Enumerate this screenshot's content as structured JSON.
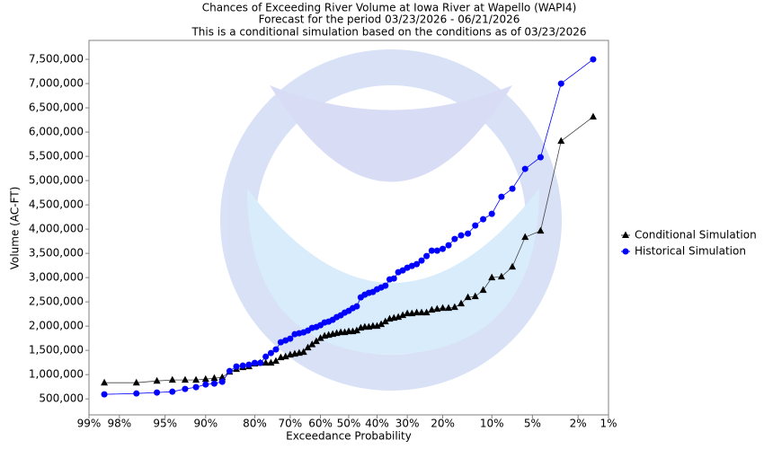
{
  "chart_data": {
    "type": "line",
    "title": "Chances of Exceeding River Volume at Iowa River at Wapello (WAPI4)",
    "subtitle": [
      "Forecast for the period 03/23/2026 - 06/21/2026",
      "This is a conditional simulation based on the conditions as of 03/23/2026"
    ],
    "x_label": "Exceedance Probability",
    "y_label": "Volume (AC-FT)",
    "xscale": "probability",
    "xlim": [
      99,
      1
    ],
    "xticks": [
      {
        "value": 99,
        "label": "99%"
      },
      {
        "value": 98,
        "label": "98%"
      },
      {
        "value": 95,
        "label": "95%"
      },
      {
        "value": 90,
        "label": "90%"
      },
      {
        "value": 80,
        "label": "80%"
      },
      {
        "value": 70,
        "label": "70%"
      },
      {
        "value": 60,
        "label": "60%"
      },
      {
        "value": 50,
        "label": "50%"
      },
      {
        "value": 40,
        "label": "40%"
      },
      {
        "value": 30,
        "label": "30%"
      },
      {
        "value": 20,
        "label": "20%"
      },
      {
        "value": 10,
        "label": "10%"
      },
      {
        "value": 5,
        "label": "5%"
      },
      {
        "value": 2,
        "label": "2%"
      },
      {
        "value": 1,
        "label": "1%"
      }
    ],
    "ylim": [
      170000,
      7890000
    ],
    "yticks": [
      {
        "value": 500000,
        "label": "500,000"
      },
      {
        "value": 1000000,
        "label": "1,000,000"
      },
      {
        "value": 1500000,
        "label": "1,500,000"
      },
      {
        "value": 2000000,
        "label": "2,000,000"
      },
      {
        "value": 2500000,
        "label": "2,500,000"
      },
      {
        "value": 3000000,
        "label": "3,000,000"
      },
      {
        "value": 3500000,
        "label": "3,500,000"
      },
      {
        "value": 4000000,
        "label": "4,000,000"
      },
      {
        "value": 4500000,
        "label": "4,500,000"
      },
      {
        "value": 5000000,
        "label": "5,000,000"
      },
      {
        "value": 5500000,
        "label": "5,500,000"
      },
      {
        "value": 6000000,
        "label": "6,000,000"
      },
      {
        "value": 6500000,
        "label": "6,500,000"
      },
      {
        "value": 7000000,
        "label": "7,000,000"
      },
      {
        "value": 7500000,
        "label": "7,500,000"
      }
    ],
    "grid": false,
    "legend": "right",
    "x": [
      98.57,
      97.14,
      95.71,
      94.29,
      92.86,
      91.43,
      90.0,
      88.57,
      87.14,
      85.71,
      84.29,
      82.86,
      81.43,
      80.0,
      78.57,
      77.14,
      75.71,
      74.29,
      72.86,
      71.43,
      70.0,
      68.57,
      67.14,
      65.71,
      64.29,
      62.86,
      61.43,
      60.0,
      58.57,
      57.14,
      55.71,
      54.29,
      52.86,
      51.43,
      50.0,
      48.57,
      47.14,
      45.71,
      44.29,
      42.86,
      41.43,
      40.0,
      38.57,
      37.14,
      35.71,
      34.29,
      32.86,
      31.43,
      30.0,
      28.57,
      27.14,
      25.71,
      24.29,
      22.86,
      21.43,
      20.0,
      18.57,
      17.14,
      15.71,
      14.29,
      12.86,
      11.43,
      10.0,
      8.57,
      7.14,
      5.71,
      4.29,
      2.86,
      1.43
    ],
    "series": [
      {
        "name": "Conditional Simulation",
        "color": "#000000",
        "line_color": "#444444",
        "marker": "triangle",
        "values": [
          833000,
          833000,
          870000,
          889000,
          889000,
          889000,
          907000,
          926000,
          944000,
          1056000,
          1111000,
          1148000,
          1167000,
          1222000,
          1241000,
          1241000,
          1241000,
          1278000,
          1352000,
          1370000,
          1407000,
          1426000,
          1444000,
          1463000,
          1556000,
          1620000,
          1685000,
          1750000,
          1796000,
          1815000,
          1833000,
          1852000,
          1870000,
          1870000,
          1889000,
          1889000,
          1907000,
          1963000,
          1981000,
          1981000,
          2000000,
          2000000,
          2037000,
          2093000,
          2148000,
          2167000,
          2185000,
          2222000,
          2259000,
          2259000,
          2278000,
          2278000,
          2278000,
          2333000,
          2352000,
          2370000,
          2370000,
          2389000,
          2463000,
          2593000,
          2611000,
          2741000,
          3000000,
          3019000,
          3222000,
          3833000,
          3963000,
          5815000,
          6315000
        ]
      },
      {
        "name": "Historical Simulation",
        "color": "#0000ff",
        "line_color": "#0000ff",
        "marker": "circle",
        "values": [
          593000,
          611000,
          630000,
          648000,
          704000,
          741000,
          796000,
          815000,
          852000,
          1074000,
          1167000,
          1185000,
          1204000,
          1241000,
          1241000,
          1370000,
          1444000,
          1519000,
          1667000,
          1704000,
          1741000,
          1833000,
          1852000,
          1870000,
          1907000,
          1963000,
          1981000,
          2019000,
          2074000,
          2093000,
          2130000,
          2185000,
          2222000,
          2278000,
          2315000,
          2370000,
          2407000,
          2593000,
          2648000,
          2685000,
          2704000,
          2759000,
          2796000,
          2833000,
          2963000,
          2981000,
          3111000,
          3148000,
          3204000,
          3241000,
          3278000,
          3352000,
          3444000,
          3556000,
          3556000,
          3593000,
          3667000,
          3796000,
          3870000,
          3907000,
          4074000,
          4204000,
          4315000,
          4667000,
          4833000,
          5241000,
          5481000,
          7000000,
          7500000
        ]
      }
    ]
  }
}
